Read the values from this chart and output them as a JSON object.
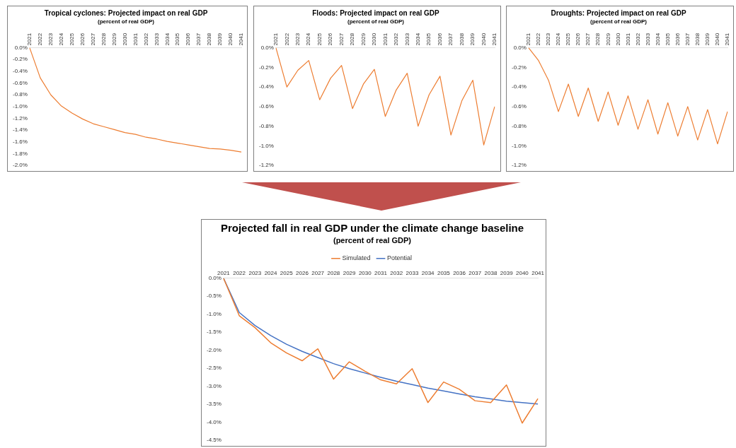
{
  "chart_data": [
    {
      "type": "line",
      "title": "Tropical cyclones: Projected impact on real GDP",
      "subtitle": "(percent of real GDP)",
      "categories": [
        "2021",
        "2022",
        "2023",
        "2024",
        "2025",
        "2026",
        "2027",
        "2028",
        "2029",
        "2030",
        "2031",
        "2032",
        "2033",
        "2034",
        "2035",
        "2036",
        "2037",
        "2038",
        "2039",
        "2040",
        "2041"
      ],
      "color": "#ed7d31",
      "marker": "none",
      "values": [
        0,
        -0.51,
        -0.8,
        -0.99,
        -1.11,
        -1.21,
        -1.29,
        -1.34,
        -1.39,
        -1.44,
        -1.47,
        -1.52,
        -1.55,
        -1.59,
        -1.62,
        -1.65,
        -1.68,
        -1.71,
        -1.72,
        -1.74,
        -1.77
      ],
      "ylim": [
        -2.0,
        0
      ],
      "yticks": [
        {
          "value": 0,
          "label": "0.0%"
        },
        {
          "value": -0.2,
          "label": "-0.2%"
        },
        {
          "value": -0.4,
          "label": "-0.4%"
        },
        {
          "value": -0.6,
          "label": "-0.6%"
        },
        {
          "value": -0.8,
          "label": "-0.8%"
        },
        {
          "value": -1.0,
          "label": "-1.0%"
        },
        {
          "value": -1.2,
          "label": "-1.2%"
        },
        {
          "value": -1.4,
          "label": "-1.4%"
        },
        {
          "value": -1.6,
          "label": "-1.6%"
        },
        {
          "value": -1.8,
          "label": "-1.8%"
        },
        {
          "value": -2.0,
          "label": "-2.0%"
        }
      ],
      "grid": false
    },
    {
      "type": "line",
      "title": "Floods: Projected impact on real GDP",
      "subtitle": "(percent of real GDP)",
      "categories": [
        "2021",
        "2022",
        "2023",
        "2024",
        "2025",
        "2026",
        "2027",
        "2028",
        "2029",
        "2030",
        "2031",
        "2032",
        "2033",
        "2034",
        "2035",
        "2036",
        "2037",
        "2038",
        "2039",
        "2040",
        "2041"
      ],
      "color": "#ed7d31",
      "marker": "none",
      "values": [
        0,
        -0.4,
        -0.23,
        -0.13,
        -0.53,
        -0.31,
        -0.18,
        -0.62,
        -0.37,
        -0.22,
        -0.7,
        -0.43,
        -0.26,
        -0.8,
        -0.48,
        -0.29,
        -0.89,
        -0.54,
        -0.33,
        -0.99,
        -0.6
      ],
      "ylim": [
        -1.2,
        0
      ],
      "yticks": [
        {
          "value": 0,
          "label": "0.0%"
        },
        {
          "value": -0.2,
          "label": "-0.2%"
        },
        {
          "value": -0.4,
          "label": "-0.4%"
        },
        {
          "value": -0.6,
          "label": "-0.6%"
        },
        {
          "value": -0.8,
          "label": "-0.8%"
        },
        {
          "value": -1.0,
          "label": "-1.0%"
        },
        {
          "value": -1.2,
          "label": "-1.2%"
        }
      ],
      "grid": false
    },
    {
      "type": "line",
      "title": "Droughts: Projected impact on real GDP",
      "subtitle": "(percent of real GDP)",
      "categories": [
        "2021",
        "2022",
        "2023",
        "2024",
        "2025",
        "2026",
        "2027",
        "2028",
        "2029",
        "2030",
        "2031",
        "2032",
        "2033",
        "2034",
        "2035",
        "2036",
        "2037",
        "2038",
        "2039",
        "2040",
        "2041"
      ],
      "color": "#ed7d31",
      "marker": "none",
      "values": [
        0,
        -0.13,
        -0.33,
        -0.65,
        -0.37,
        -0.7,
        -0.41,
        -0.75,
        -0.45,
        -0.79,
        -0.49,
        -0.83,
        -0.53,
        -0.88,
        -0.56,
        -0.9,
        -0.6,
        -0.94,
        -0.63,
        -0.98,
        -0.65
      ],
      "ylim": [
        -1.2,
        0
      ],
      "yticks": [
        {
          "value": 0,
          "label": "0.0%"
        },
        {
          "value": -0.2,
          "label": "-0.2%"
        },
        {
          "value": -0.4,
          "label": "-0.4%"
        },
        {
          "value": -0.6,
          "label": "-0.6%"
        },
        {
          "value": -0.8,
          "label": "-0.8%"
        },
        {
          "value": -1.0,
          "label": "-1.0%"
        },
        {
          "value": -1.2,
          "label": "-1.2%"
        }
      ],
      "grid": false
    },
    {
      "type": "line",
      "title": "Projected fall in real GDP under the climate change baseline",
      "subtitle": "(percent of real GDP)",
      "categories": [
        "2021",
        "2022",
        "2023",
        "2024",
        "2025",
        "2026",
        "2027",
        "2028",
        "2029",
        "2030",
        "2031",
        "2032",
        "2033",
        "2034",
        "2035",
        "2036",
        "2037",
        "2038",
        "2039",
        "2040",
        "2041"
      ],
      "marker": "none",
      "legend": "top",
      "series": [
        {
          "name": "Simulated",
          "color": "#ed7d31",
          "values": [
            0,
            -1.04,
            -1.37,
            -1.79,
            -2.07,
            -2.29,
            -1.96,
            -2.8,
            -2.32,
            -2.58,
            -2.82,
            -2.93,
            -2.51,
            -3.45,
            -2.88,
            -3.08,
            -3.4,
            -3.45,
            -2.96,
            -4.02,
            -3.34
          ]
        },
        {
          "name": "Potential",
          "color": "#4472c4",
          "values": [
            0,
            -0.95,
            -1.31,
            -1.59,
            -1.83,
            -2.03,
            -2.2,
            -2.37,
            -2.51,
            -2.63,
            -2.75,
            -2.86,
            -2.95,
            -3.05,
            -3.13,
            -3.21,
            -3.29,
            -3.35,
            -3.41,
            -3.45,
            -3.49
          ]
        }
      ],
      "ylim": [
        -4.5,
        0
      ],
      "yticks": [
        {
          "value": 0,
          "label": "0.0%"
        },
        {
          "value": -0.5,
          "label": "-0.5%"
        },
        {
          "value": -1.0,
          "label": "-1.0%"
        },
        {
          "value": -1.5,
          "label": "-1.5%"
        },
        {
          "value": -2.0,
          "label": "-2.0%"
        },
        {
          "value": -2.5,
          "label": "-2.5%"
        },
        {
          "value": -3.0,
          "label": "-3.0%"
        },
        {
          "value": -3.5,
          "label": "-3.5%"
        },
        {
          "value": -4.0,
          "label": "-4.0%"
        },
        {
          "value": -4.5,
          "label": "-4.5%"
        }
      ],
      "grid": false
    }
  ]
}
